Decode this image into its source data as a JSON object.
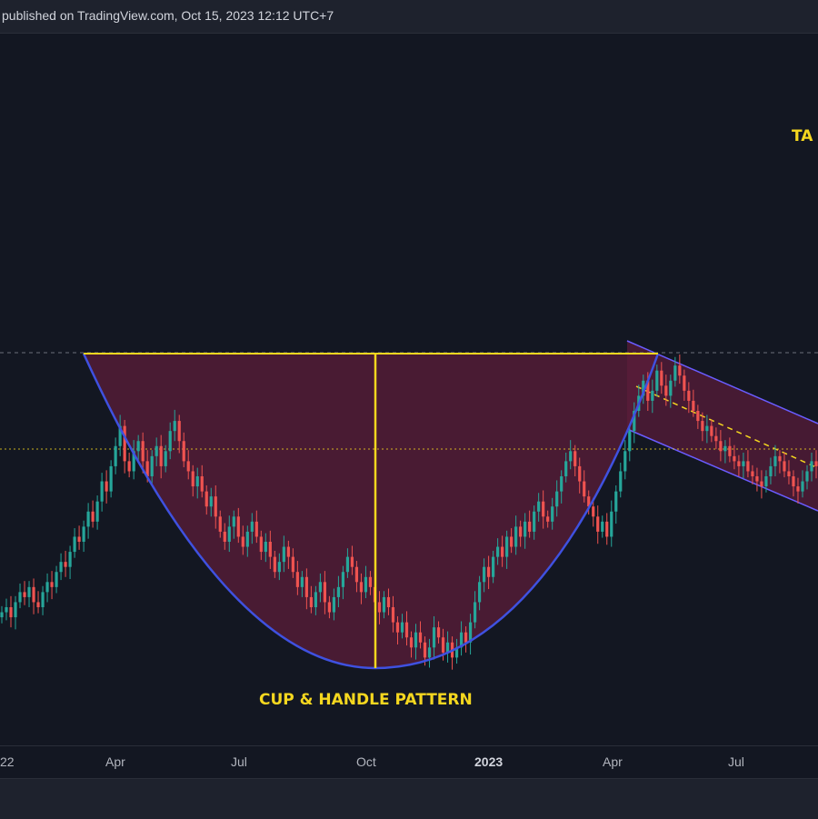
{
  "header": {
    "published_text": "published on TradingView.com, Oct 15, 2023 12:12 UTC+7"
  },
  "labels": {
    "pattern": "CUP & HANDLE PATTERN",
    "target_partial": "TA"
  },
  "colors": {
    "background": "#131722",
    "candle_up": "#26a69a",
    "candle_down": "#ef5350",
    "cup_line": "#3f51e0",
    "cup_fill": "#5c1d3a",
    "rim_line": "#f5d71f",
    "label": "#f5d71f",
    "channel_border": "#6a5cff"
  },
  "chart_data": {
    "type": "candlestick",
    "x_axis_ticks": [
      "22",
      "Apr",
      "Jul",
      "Oct",
      "2023",
      "Apr",
      "Jul"
    ],
    "annotations": [
      "CUP & HANDLE PATTERN",
      "TA"
    ],
    "grid": false,
    "series": [
      {
        "close": [
          42,
          43,
          41,
          44,
          46,
          45,
          47,
          44,
          43,
          46,
          48,
          47,
          50,
          52,
          51,
          54,
          57,
          56,
          59,
          62,
          60,
          64,
          68,
          66,
          71,
          75,
          79,
          72,
          70,
          74,
          76,
          72,
          69,
          73,
          75,
          71,
          74,
          78,
          80,
          76,
          72,
          70,
          67,
          69,
          66,
          63,
          65,
          61,
          58,
          56,
          59,
          61,
          57,
          55,
          58,
          60,
          57,
          54,
          56,
          53,
          50,
          52,
          55,
          53,
          50,
          47,
          49,
          45,
          43,
          46,
          48,
          44,
          42,
          45,
          47,
          50,
          53,
          51,
          48,
          46,
          49,
          47,
          44,
          42,
          45,
          43,
          40,
          38,
          40,
          37,
          35,
          38,
          36,
          33,
          35,
          39,
          37,
          34,
          36,
          33,
          35,
          38,
          36,
          40,
          44,
          48,
          51,
          49,
          53,
          55,
          53,
          57,
          55,
          59,
          57,
          60,
          58,
          62,
          64,
          61,
          60,
          63,
          66,
          69,
          72,
          74,
          71,
          68,
          65,
          63,
          61,
          58,
          60,
          57,
          62,
          66,
          70,
          74,
          78,
          82,
          85,
          88,
          84,
          86,
          90,
          87,
          85,
          88,
          91,
          89,
          86,
          84,
          82,
          80,
          78,
          79,
          77,
          76,
          74,
          75,
          73,
          72,
          71,
          72,
          70,
          69,
          68,
          67,
          69,
          71,
          73,
          72,
          70,
          69,
          67,
          66,
          68,
          70,
          72,
          71
        ]
      }
    ]
  }
}
